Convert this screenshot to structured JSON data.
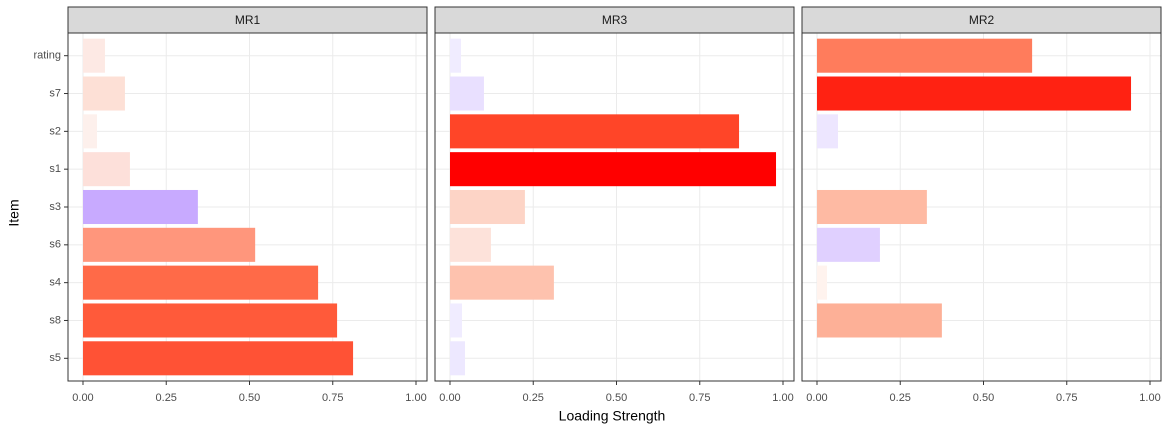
{
  "chart_data": {
    "type": "bar",
    "orientation": "horizontal",
    "xlabel": "Loading Strength",
    "ylabel": "Item",
    "categories": [
      "rating",
      "s7",
      "s2",
      "s1",
      "s3",
      "s6",
      "s4",
      "s8",
      "s5"
    ],
    "xlim": [
      -0.045,
      1.033
    ],
    "xticks": [
      {
        "value": 0,
        "label": "0.00"
      },
      {
        "value": 0.25,
        "label": "0.25"
      },
      {
        "value": 0.5,
        "label": "0.50"
      },
      {
        "value": 0.75,
        "label": "0.75"
      },
      {
        "value": 1,
        "label": "1.00"
      }
    ],
    "grid": true,
    "panels": [
      {
        "title": "MR1",
        "values": [
          0.066,
          0.126,
          0.042,
          0.141,
          0.345,
          0.517,
          0.706,
          0.763,
          0.811
        ],
        "colors": [
          "#fde9e4",
          "#fde0d6",
          "#fdf0ec",
          "#fde0da",
          "#c8aaff",
          "#ff967c",
          "#ff6a48",
          "#ff5a3a",
          "#ff5235"
        ]
      },
      {
        "title": "MR3",
        "values": [
          0.033,
          0.102,
          0.868,
          0.979,
          0.225,
          0.123,
          0.312,
          0.036,
          0.045
        ],
        "colors": [
          "#f0ecff",
          "#e9e0ff",
          "#ff4528",
          "#ff0000",
          "#fdd4c6",
          "#fde2da",
          "#fec2ae",
          "#f0ecff",
          "#ede8ff"
        ]
      },
      {
        "title": "MR2",
        "values": [
          0.646,
          0.943,
          0.063,
          0,
          0.33,
          0.189,
          0.03,
          0.375,
          0
        ],
        "colors": [
          "#ff7c5c",
          "#ff2212",
          "#ede6ff",
          "#ffffff",
          "#febaa3",
          "#e0d0ff",
          "#fff3ee",
          "#fdb097",
          "#ffffff"
        ]
      }
    ]
  }
}
